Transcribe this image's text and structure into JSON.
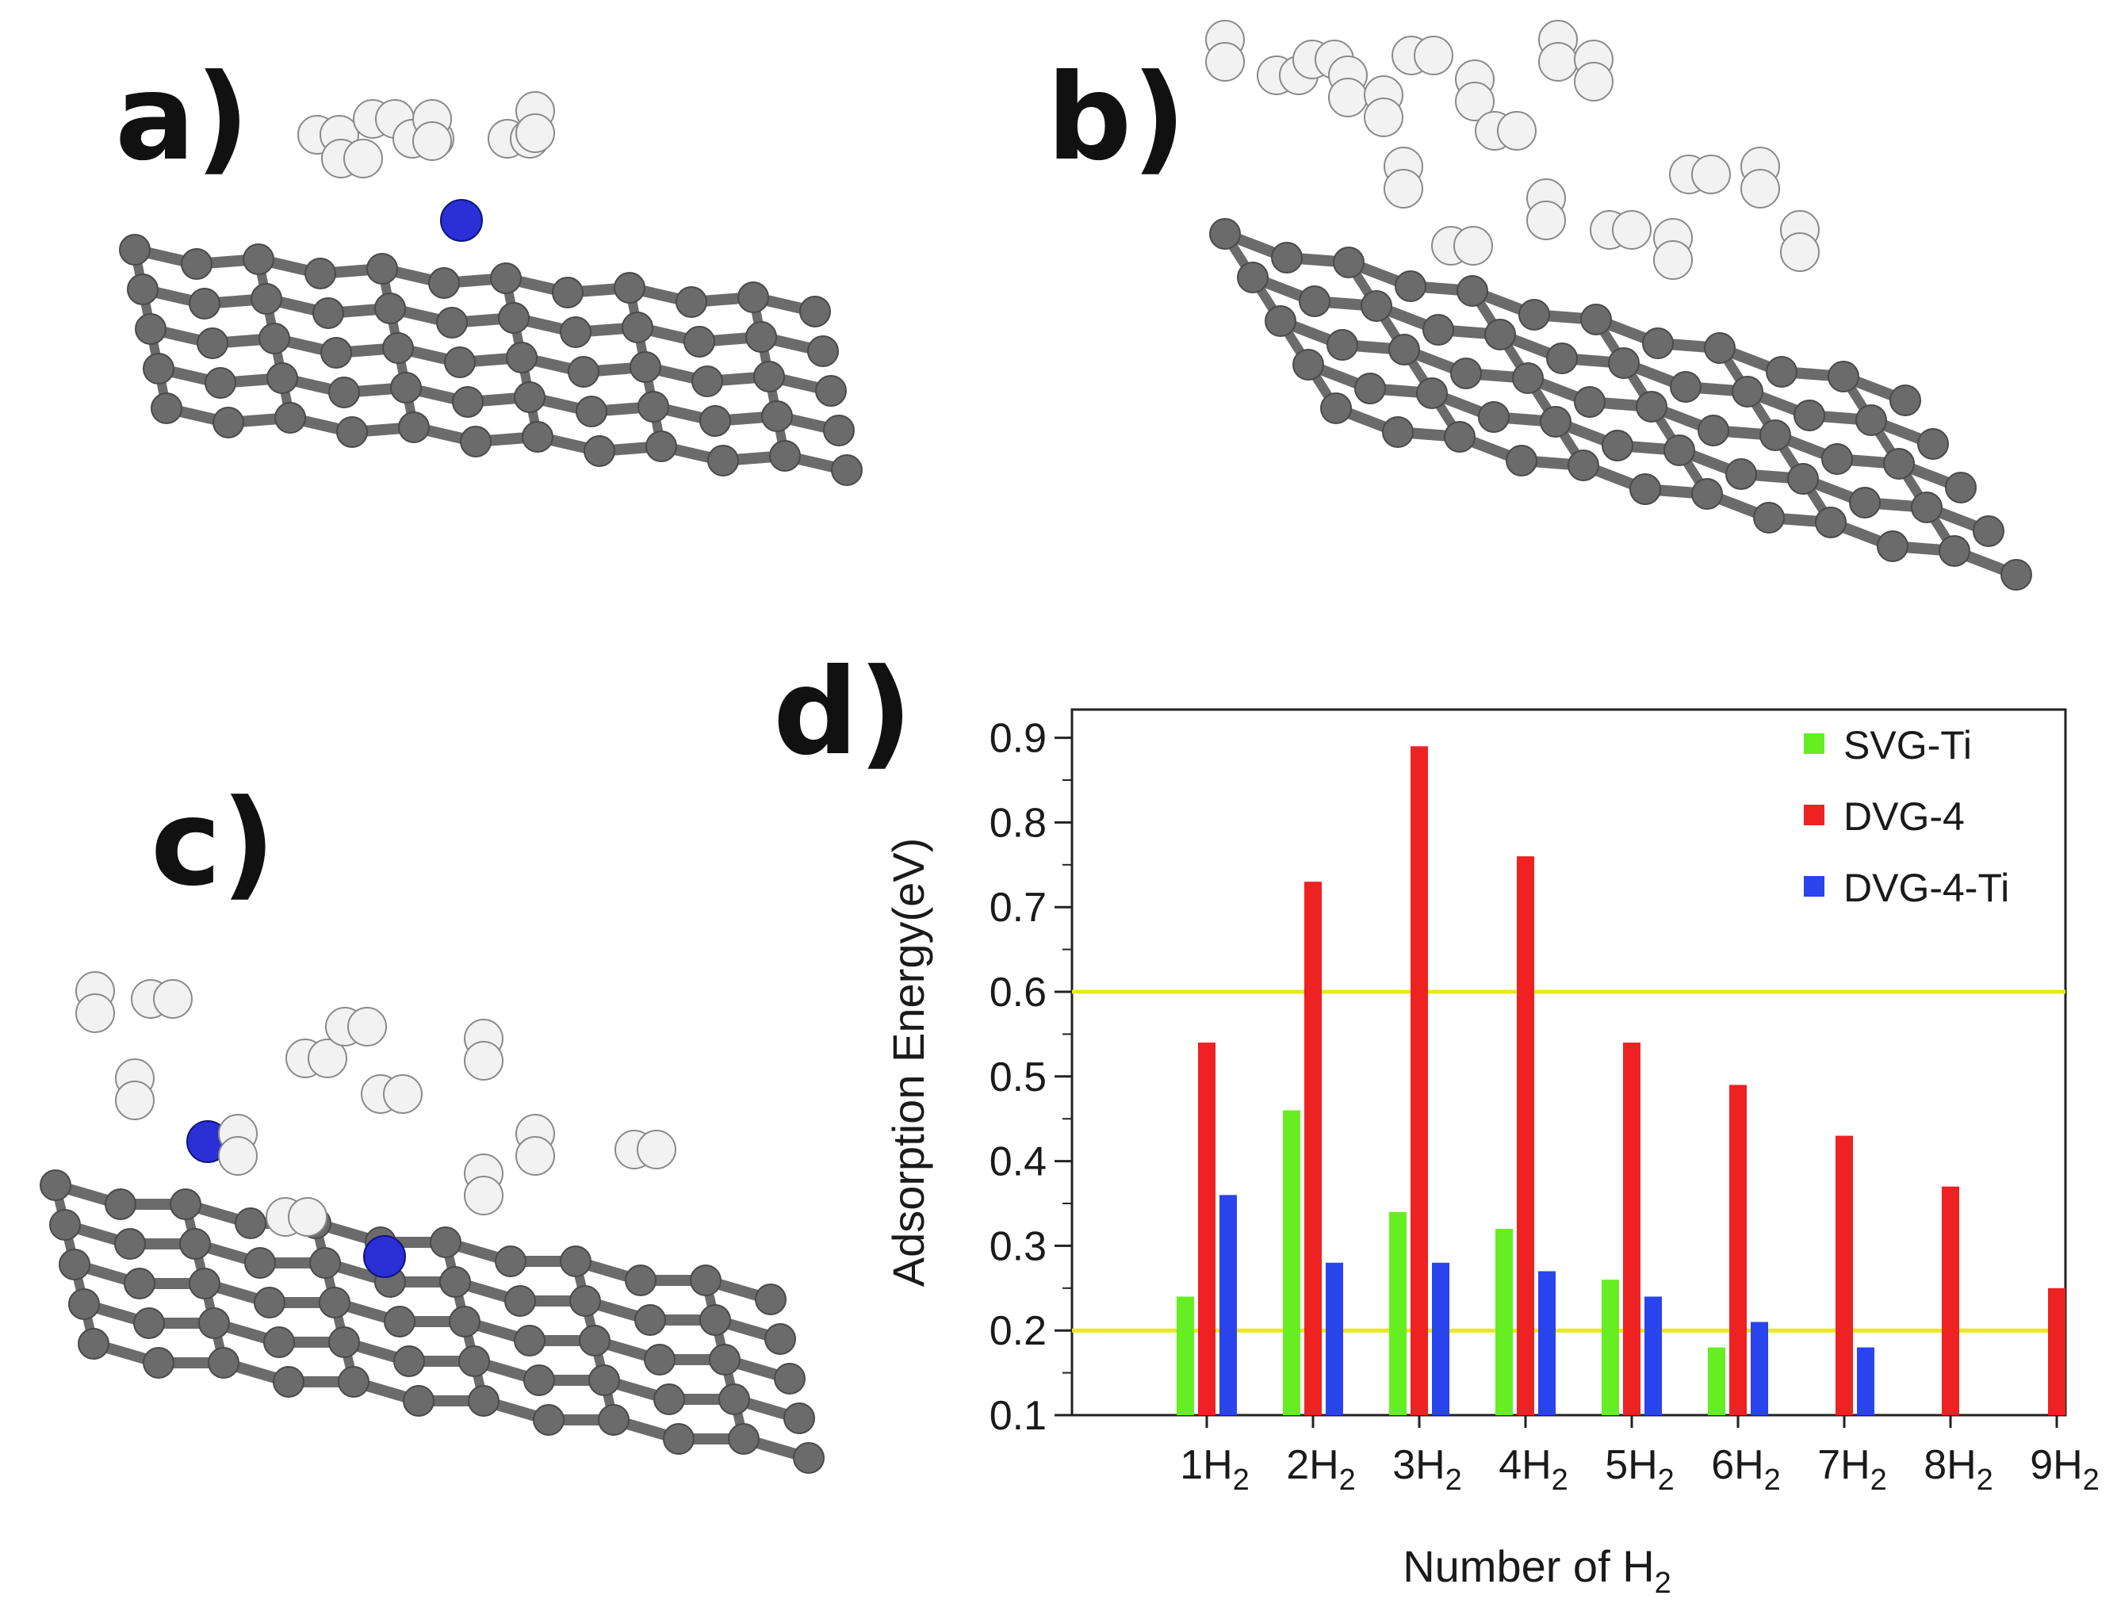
{
  "panels": {
    "a": {
      "label": "a)"
    },
    "b": {
      "label": "b)"
    },
    "c": {
      "label": "c)"
    },
    "d": {
      "label": "d)"
    }
  },
  "colors": {
    "carbon": "#6b6b6b",
    "hydrogen": "#f2f2f2",
    "titanium": "#2a2fd6",
    "svg_ti": "#66ee22",
    "dvg_4": "#ee2222",
    "dvg_4_ti": "#2a44ee",
    "threshold": "#e8e81a"
  },
  "chart_data": {
    "type": "bar",
    "x_label_parts": {
      "main": "Number of H",
      "sub": "2"
    },
    "ylabel": "Adsorption Energy(eV)",
    "ylim": [
      0.1,
      0.9
    ],
    "yticks": [
      "0.1",
      "0.2",
      "0.3",
      "0.4",
      "0.5",
      "0.6",
      "0.7",
      "0.8",
      "0.9"
    ],
    "categories": [
      {
        "main": "1H",
        "sub": "2"
      },
      {
        "main": "2H",
        "sub": "2"
      },
      {
        "main": "3H",
        "sub": "2"
      },
      {
        "main": "4H",
        "sub": "2"
      },
      {
        "main": "5H",
        "sub": "2"
      },
      {
        "main": "6H",
        "sub": "2"
      },
      {
        "main": "7H",
        "sub": "2"
      },
      {
        "main": "8H",
        "sub": "2"
      },
      {
        "main": "9H",
        "sub": "2"
      }
    ],
    "series": [
      {
        "name": "SVG-Ti",
        "color": "#66ee22",
        "values": [
          0.24,
          0.46,
          0.34,
          0.32,
          0.26,
          0.18,
          null,
          null,
          null
        ]
      },
      {
        "name": "DVG-4",
        "color": "#ee2222",
        "values": [
          0.54,
          0.73,
          0.89,
          0.76,
          0.54,
          0.49,
          0.43,
          0.37,
          0.25
        ]
      },
      {
        "name": "DVG-4-Ti",
        "color": "#2a44ee",
        "values": [
          0.36,
          0.28,
          0.28,
          0.27,
          0.24,
          0.21,
          0.18,
          null,
          null
        ]
      }
    ],
    "reference_lines": [
      0.2,
      0.6
    ],
    "legend_position": "top-right",
    "grid": false
  }
}
